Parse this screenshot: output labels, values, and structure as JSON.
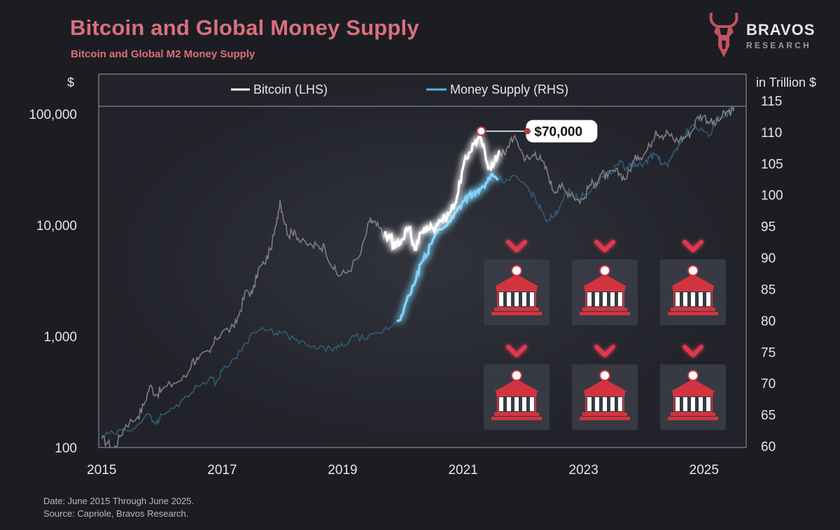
{
  "header": {
    "title": "Bitcoin and Global Money Supply",
    "subtitle": "Bitcoin and Global M2 Money Supply"
  },
  "logo": {
    "name": "BRAVOS",
    "sub": "RESEARCH"
  },
  "footer": {
    "date": "Date: June 2015 Through June 2025.",
    "source": "Source: Capriole, Bravos Research."
  },
  "colors": {
    "title": "#d9707c",
    "bitcoin": "#ffffff",
    "money_supply": "#4fb8e6",
    "bank_icon": "#d2343f",
    "chevron": "#e0394f",
    "background": "#1c1d23"
  },
  "icons": {
    "bank": "bank-icon",
    "arrow": "chevron-down-icon",
    "logo": "bull-head-icon"
  },
  "chart_data": {
    "type": "line",
    "title": "Bitcoin and Global Money Supply",
    "subtitle": "Bitcoin and Global M2 Money Supply",
    "legend": [
      "Bitcoin (LHS)",
      "Money Supply (RHS)"
    ],
    "legend_position": "top",
    "left_axis": {
      "label": "$",
      "scale": "log",
      "range": [
        100,
        100000
      ],
      "ticks": [
        100,
        1000,
        10000,
        100000
      ],
      "tick_labels": [
        "100",
        "1,000",
        "10,000",
        "100,000"
      ]
    },
    "right_axis": {
      "label": "in Trillion $",
      "scale": "linear",
      "range": [
        60,
        115
      ],
      "ticks": [
        60,
        65,
        70,
        75,
        80,
        85,
        90,
        95,
        100,
        105,
        110,
        115
      ],
      "tick_labels": [
        "60",
        "65",
        "70",
        "75",
        "80",
        "85",
        "90",
        "95",
        "100",
        "105",
        "110",
        "115"
      ]
    },
    "x_axis": {
      "range": [
        2015,
        2025.5
      ],
      "ticks": [
        2015,
        2017,
        2019,
        2021,
        2023,
        2025
      ],
      "tick_labels": [
        "2015",
        "2017",
        "2019",
        "2021",
        "2023",
        "2025"
      ]
    },
    "highlight_range": [
      2019.7,
      2021.6
    ],
    "annotation": {
      "label": "$70,000",
      "x": 2021.3,
      "y": 70000
    },
    "series": [
      {
        "name": "Bitcoin (LHS)",
        "axis": "left",
        "points": [
          [
            2015.0,
            120
          ],
          [
            2015.1,
            110
          ],
          [
            2015.2,
            95
          ],
          [
            2015.3,
            125
          ],
          [
            2015.4,
            160
          ],
          [
            2015.6,
            190
          ],
          [
            2015.7,
            240
          ],
          [
            2015.8,
            360
          ],
          [
            2015.9,
            300
          ],
          [
            2016.0,
            330
          ],
          [
            2016.2,
            380
          ],
          [
            2016.4,
            430
          ],
          [
            2016.5,
            600
          ],
          [
            2016.6,
            620
          ],
          [
            2016.8,
            720
          ],
          [
            2016.9,
            950
          ],
          [
            2017.0,
            1100
          ],
          [
            2017.2,
            1200
          ],
          [
            2017.3,
            1700
          ],
          [
            2017.4,
            2600
          ],
          [
            2017.5,
            2400
          ],
          [
            2017.6,
            4000
          ],
          [
            2017.7,
            4500
          ],
          [
            2017.8,
            6000
          ],
          [
            2017.9,
            10000
          ],
          [
            2017.96,
            17000
          ],
          [
            2018.0,
            13000
          ],
          [
            2018.1,
            8000
          ],
          [
            2018.2,
            9000
          ],
          [
            2018.3,
            7000
          ],
          [
            2018.5,
            6500
          ],
          [
            2018.6,
            6500
          ],
          [
            2018.7,
            6400
          ],
          [
            2018.85,
            4000
          ],
          [
            2018.95,
            3500
          ],
          [
            2019.1,
            3900
          ],
          [
            2019.3,
            5500
          ],
          [
            2019.45,
            11000
          ],
          [
            2019.5,
            10500
          ],
          [
            2019.6,
            9500
          ],
          [
            2019.7,
            8200
          ],
          [
            2019.75,
            7500
          ],
          [
            2019.8,
            8000
          ],
          [
            2019.85,
            6200
          ],
          [
            2019.9,
            7000
          ],
          [
            2020.0,
            7500
          ],
          [
            2020.1,
            9500
          ],
          [
            2020.2,
            6000
          ],
          [
            2020.3,
            8500
          ],
          [
            2020.4,
            9500
          ],
          [
            2020.5,
            9400
          ],
          [
            2020.6,
            11000
          ],
          [
            2020.7,
            11500
          ],
          [
            2020.8,
            13500
          ],
          [
            2020.9,
            18000
          ],
          [
            2021.0,
            33000
          ],
          [
            2021.1,
            45000
          ],
          [
            2021.2,
            57000
          ],
          [
            2021.3,
            59000
          ],
          [
            2021.4,
            36000
          ],
          [
            2021.5,
            34000
          ],
          [
            2021.6,
            47000
          ],
          [
            2021.7,
            43000
          ],
          [
            2021.8,
            61000
          ],
          [
            2021.9,
            57000
          ],
          [
            2022.0,
            42000
          ],
          [
            2022.1,
            39000
          ],
          [
            2022.2,
            45000
          ],
          [
            2022.3,
            38000
          ],
          [
            2022.4,
            30000
          ],
          [
            2022.5,
            20000
          ],
          [
            2022.6,
            23000
          ],
          [
            2022.7,
            20000
          ],
          [
            2022.8,
            19500
          ],
          [
            2022.9,
            16800
          ],
          [
            2023.0,
            17000
          ],
          [
            2023.1,
            23000
          ],
          [
            2023.2,
            24000
          ],
          [
            2023.3,
            29000
          ],
          [
            2023.4,
            27000
          ],
          [
            2023.5,
            30500
          ],
          [
            2023.6,
            29000
          ],
          [
            2023.7,
            26000
          ],
          [
            2023.8,
            35000
          ],
          [
            2023.9,
            42000
          ],
          [
            2024.0,
            43000
          ],
          [
            2024.1,
            52000
          ],
          [
            2024.2,
            71000
          ],
          [
            2024.3,
            64000
          ],
          [
            2024.4,
            68000
          ],
          [
            2024.5,
            58000
          ],
          [
            2024.6,
            59000
          ],
          [
            2024.7,
            63000
          ],
          [
            2024.8,
            70000
          ],
          [
            2024.9,
            95000
          ],
          [
            2025.0,
            96000
          ],
          [
            2025.1,
            84000
          ],
          [
            2025.2,
            82000
          ],
          [
            2025.3,
            95000
          ],
          [
            2025.4,
            105000
          ],
          [
            2025.5,
            107000
          ]
        ]
      },
      {
        "name": "Money Supply (RHS)",
        "axis": "right",
        "points": [
          [
            2015.0,
            61.5
          ],
          [
            2015.2,
            62
          ],
          [
            2015.4,
            62.5
          ],
          [
            2015.6,
            63.5
          ],
          [
            2015.8,
            65
          ],
          [
            2015.9,
            63.5
          ],
          [
            2016.0,
            65
          ],
          [
            2016.2,
            66
          ],
          [
            2016.4,
            68
          ],
          [
            2016.6,
            69.5
          ],
          [
            2016.8,
            71
          ],
          [
            2016.9,
            70
          ],
          [
            2017.0,
            72
          ],
          [
            2017.2,
            74
          ],
          [
            2017.4,
            76.5
          ],
          [
            2017.5,
            78
          ],
          [
            2017.7,
            78.5
          ],
          [
            2017.9,
            78
          ],
          [
            2018.0,
            78
          ],
          [
            2018.2,
            77
          ],
          [
            2018.4,
            76
          ],
          [
            2018.6,
            75.5
          ],
          [
            2018.8,
            75.5
          ],
          [
            2018.9,
            75.5
          ],
          [
            2019.0,
            76
          ],
          [
            2019.2,
            77.5
          ],
          [
            2019.4,
            77
          ],
          [
            2019.6,
            78
          ],
          [
            2019.8,
            79
          ],
          [
            2019.9,
            80
          ],
          [
            2020.0,
            81
          ],
          [
            2020.1,
            84
          ],
          [
            2020.2,
            86
          ],
          [
            2020.3,
            89
          ],
          [
            2020.4,
            90.5
          ],
          [
            2020.5,
            93
          ],
          [
            2020.6,
            94.5
          ],
          [
            2020.8,
            96
          ],
          [
            2020.9,
            97.5
          ],
          [
            2021.0,
            99
          ],
          [
            2021.1,
            100
          ],
          [
            2021.2,
            100
          ],
          [
            2021.3,
            101
          ],
          [
            2021.4,
            102
          ],
          [
            2021.5,
            103
          ],
          [
            2021.7,
            102
          ],
          [
            2021.8,
            103
          ],
          [
            2022.0,
            102
          ],
          [
            2022.1,
            100.5
          ],
          [
            2022.2,
            99.5
          ],
          [
            2022.3,
            97.5
          ],
          [
            2022.4,
            96
          ],
          [
            2022.5,
            96.5
          ],
          [
            2022.6,
            98
          ],
          [
            2022.7,
            100.5
          ],
          [
            2022.8,
            100.5
          ],
          [
            2022.9,
            99.5
          ],
          [
            2023.0,
            100
          ],
          [
            2023.2,
            101
          ],
          [
            2023.3,
            103
          ],
          [
            2023.5,
            104
          ],
          [
            2023.6,
            105.5
          ],
          [
            2023.7,
            104
          ],
          [
            2023.8,
            105
          ],
          [
            2023.9,
            104.5
          ],
          [
            2024.0,
            105
          ],
          [
            2024.1,
            106
          ],
          [
            2024.2,
            106.5
          ],
          [
            2024.3,
            105
          ],
          [
            2024.4,
            104.5
          ],
          [
            2024.5,
            107
          ],
          [
            2024.6,
            108
          ],
          [
            2024.7,
            110
          ],
          [
            2024.8,
            111
          ],
          [
            2025.0,
            110
          ],
          [
            2025.1,
            109.5
          ],
          [
            2025.2,
            112
          ],
          [
            2025.3,
            112.5
          ],
          [
            2025.4,
            113
          ],
          [
            2025.5,
            114
          ]
        ]
      }
    ]
  }
}
